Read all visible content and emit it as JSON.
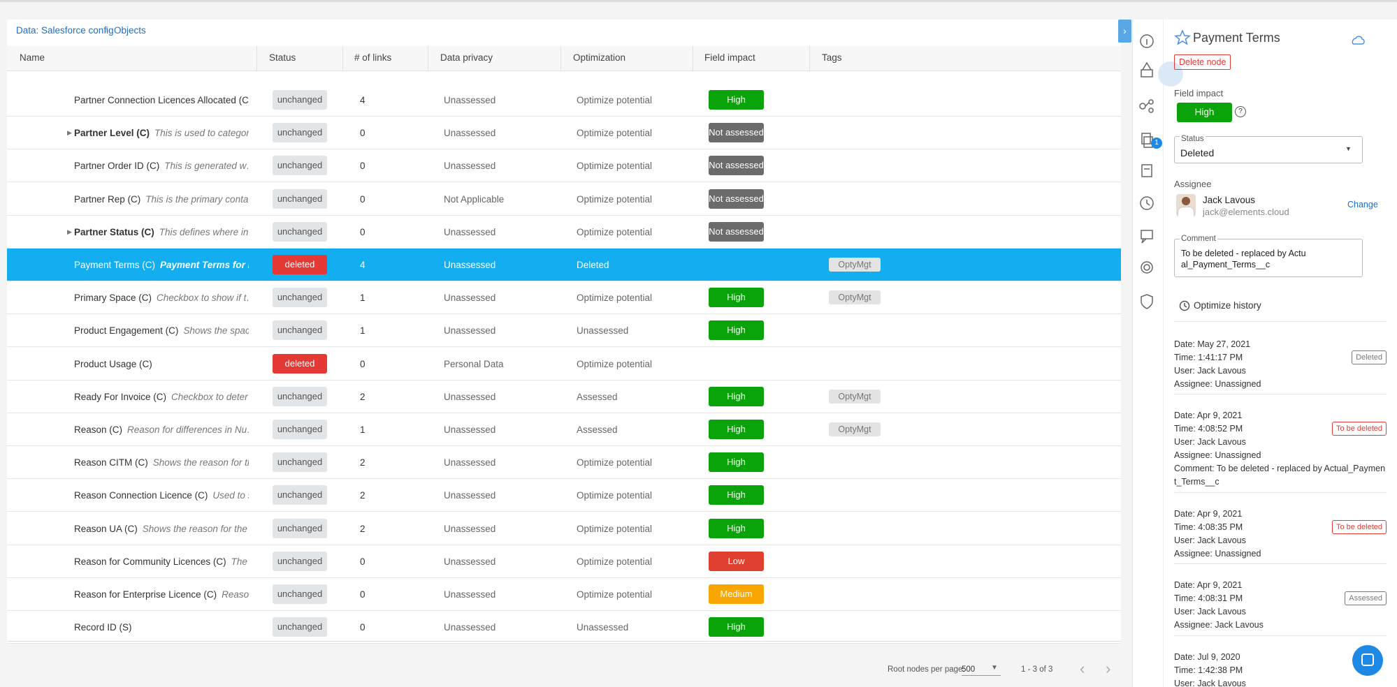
{
  "breadcrumb": [
    "Data: Salesforce config",
    "Objects"
  ],
  "columns": [
    "Name",
    "Status",
    "# of links",
    "Data privacy",
    "Optimization",
    "Field impact",
    "Tags"
  ],
  "status_colors": {
    "unchanged": {
      "bg": "#e2e5e8",
      "fg": "#555555"
    },
    "deleted": {
      "bg": "#e53935",
      "fg": "#ffffff"
    }
  },
  "impact_colors": {
    "High": "#0aa30a",
    "Not assessed": "#6b6b6b",
    "Low": "#e0402f",
    "Medium": "#f9a602"
  },
  "selected_row": 5,
  "rows": [
    {
      "name": "Partner Connection Licences Allocated (C)…",
      "desc": null,
      "expandable": false,
      "status": "unchanged",
      "links": 4,
      "privacy": "Unassessed",
      "optimization": "Optimize potential",
      "impact": "High",
      "tag": null
    },
    {
      "name": "Partner Level (C)",
      "desc": "This is used to categori…",
      "expandable": true,
      "status": "unchanged",
      "links": 0,
      "privacy": "Unassessed",
      "optimization": "Optimize potential",
      "impact": "Not assessed",
      "tag": null
    },
    {
      "name": "Partner Order ID (C)",
      "desc": "This is generated w…",
      "expandable": false,
      "status": "unchanged",
      "links": 0,
      "privacy": "Unassessed",
      "optimization": "Optimize potential",
      "impact": "Not assessed",
      "tag": null
    },
    {
      "name": "Partner Rep (C)",
      "desc": "This is the primary conta…",
      "expandable": false,
      "status": "unchanged",
      "links": 0,
      "privacy": "Not Applicable",
      "optimization": "Optimize potential",
      "impact": "Not assessed",
      "tag": null
    },
    {
      "name": "Partner Status (C)",
      "desc": "This defines where in …",
      "expandable": true,
      "status": "unchanged",
      "links": 0,
      "privacy": "Unassessed",
      "optimization": "Optimize potential",
      "impact": "Not assessed",
      "tag": null
    },
    {
      "name": "Payment Terms (C)",
      "desc": "Payment Terms for I…",
      "expandable": false,
      "status": "deleted",
      "links": 4,
      "privacy": "Unassessed",
      "optimization": "Deleted",
      "impact": null,
      "tag": "OptyMgt"
    },
    {
      "name": "Primary Space (C)",
      "desc": "Checkbox to show if t…",
      "expandable": false,
      "status": "unchanged",
      "links": 1,
      "privacy": "Unassessed",
      "optimization": "Optimize potential",
      "impact": "High",
      "tag": "OptyMgt"
    },
    {
      "name": "Product Engagement (C)",
      "desc": "Shows the spac…",
      "expandable": false,
      "status": "unchanged",
      "links": 1,
      "privacy": "Unassessed",
      "optimization": "Unassessed",
      "impact": "High",
      "tag": null
    },
    {
      "name": "Product Usage (C)",
      "desc": null,
      "expandable": false,
      "status": "deleted",
      "links": 0,
      "privacy": "Personal Data",
      "optimization": "Optimize potential",
      "impact": null,
      "tag": null
    },
    {
      "name": "Ready For Invoice (C)",
      "desc": "Checkbox to deter…",
      "expandable": false,
      "status": "unchanged",
      "links": 2,
      "privacy": "Unassessed",
      "optimization": "Assessed",
      "impact": "High",
      "tag": "OptyMgt"
    },
    {
      "name": "Reason (C)",
      "desc": "Reason for differences in Nu…",
      "expandable": false,
      "status": "unchanged",
      "links": 1,
      "privacy": "Unassessed",
      "optimization": "Assessed",
      "impact": "High",
      "tag": "OptyMgt"
    },
    {
      "name": "Reason CITM (C)",
      "desc": "Shows the reason for th…",
      "expandable": false,
      "status": "unchanged",
      "links": 2,
      "privacy": "Unassessed",
      "optimization": "Optimize potential",
      "impact": "High",
      "tag": null
    },
    {
      "name": "Reason Connection Licence (C)",
      "desc": "Used to s…",
      "expandable": false,
      "status": "unchanged",
      "links": 2,
      "privacy": "Unassessed",
      "optimization": "Optimize potential",
      "impact": "High",
      "tag": null
    },
    {
      "name": "Reason UA (C)",
      "desc": "Shows the reason for the …",
      "expandable": false,
      "status": "unchanged",
      "links": 2,
      "privacy": "Unassessed",
      "optimization": "Optimize potential",
      "impact": "High",
      "tag": null
    },
    {
      "name": "Reason for Community Licences (C)",
      "desc": "The …",
      "expandable": false,
      "status": "unchanged",
      "links": 0,
      "privacy": "Unassessed",
      "optimization": "Optimize potential",
      "impact": "Low",
      "tag": null
    },
    {
      "name": "Reason for Enterprise Licence (C)",
      "desc": "Reaso…",
      "expandable": false,
      "status": "unchanged",
      "links": 0,
      "privacy": "Unassessed",
      "optimization": "Optimize potential",
      "impact": "Medium",
      "tag": null
    },
    {
      "name": "Record ID (S)",
      "desc": null,
      "expandable": false,
      "status": "unchanged",
      "links": 0,
      "privacy": "Unassessed",
      "optimization": "Unassessed",
      "impact": "High",
      "tag": null
    }
  ],
  "footer": {
    "per_page_label": "Root nodes per page:",
    "per_page": 500,
    "range": "1 - 3 of 3"
  },
  "panel": {
    "title": "Payment Terms",
    "delete_label": "Delete node",
    "field_impact_label": "Field impact",
    "field_impact": "High",
    "status_label": "Status",
    "status": "Deleted",
    "assignee_label": "Assignee",
    "assignee_name": "Jack Lavous",
    "assignee_email": "jack@elements.cloud",
    "change_label": "Change",
    "comment_label": "Comment",
    "comment": "To be deleted - replaced by Actual_Payment_Terms__c",
    "history_title": "Optimize history",
    "notifications": 1,
    "history_labels": {
      "date": "Date:",
      "time": "Time:",
      "user": "User:",
      "assignee": "Assignee:",
      "comment": "Comment:"
    },
    "history": [
      {
        "date": "May 27, 2021",
        "time": "1:41:17 PM",
        "user": "Jack Lavous",
        "assignee": "Unassigned",
        "badge": "Deleted",
        "badge_color": "#777777"
      },
      {
        "date": "Apr 9, 2021",
        "time": "4:08:52 PM",
        "user": "Jack Lavous",
        "assignee": "Unassigned",
        "comment": "To be deleted - replaced by Actual_Payment_Terms__c",
        "badge": "To be deleted",
        "badge_color": "#e53935"
      },
      {
        "date": "Apr 9, 2021",
        "time": "4:08:35 PM",
        "user": "Jack Lavous",
        "assignee": "Unassigned",
        "badge": "To be deleted",
        "badge_color": "#e53935"
      },
      {
        "date": "Apr 9, 2021",
        "time": "4:08:31 PM",
        "user": "Jack Lavous",
        "assignee": "Jack Lavous",
        "badge": "Assessed",
        "badge_color": "#777777"
      },
      {
        "date": "Jul 9, 2020",
        "time": "1:42:38 PM",
        "user": "Jack Lavous"
      }
    ]
  }
}
